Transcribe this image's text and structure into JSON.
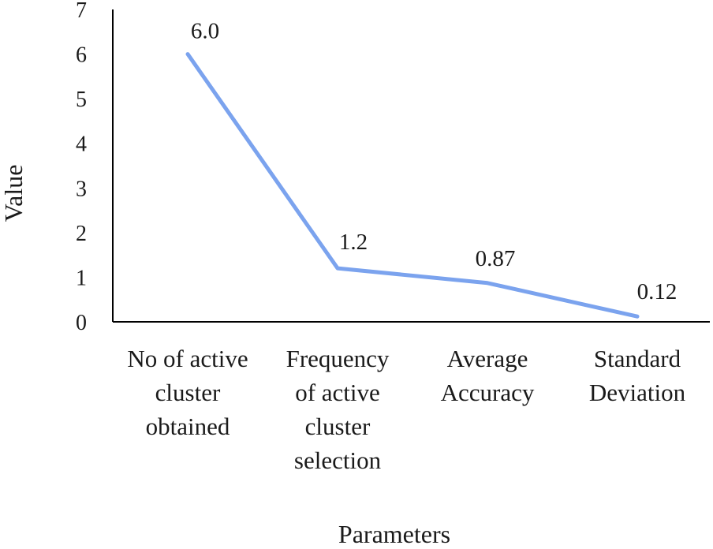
{
  "chart_data": {
    "type": "line",
    "categories": [
      [
        "No of active",
        "cluster",
        "obtained"
      ],
      [
        "Frequency",
        "of active",
        "cluster",
        "selection"
      ],
      [
        "Average",
        "Accuracy"
      ],
      [
        "Standard",
        "Deviation"
      ]
    ],
    "series": [
      {
        "values": [
          6.0,
          1.2,
          0.87,
          0.12
        ],
        "data_labels": [
          "6.0",
          "1.2",
          "0.87",
          "0.12"
        ],
        "color": "#7ba3ee"
      }
    ],
    "y_ticks": [
      "0",
      "1",
      "2",
      "3",
      "4",
      "5",
      "6",
      "7"
    ],
    "ylim": [
      0,
      7
    ],
    "xlabel": "Parameters",
    "ylabel": "Value",
    "grid": false,
    "legend": "none"
  }
}
